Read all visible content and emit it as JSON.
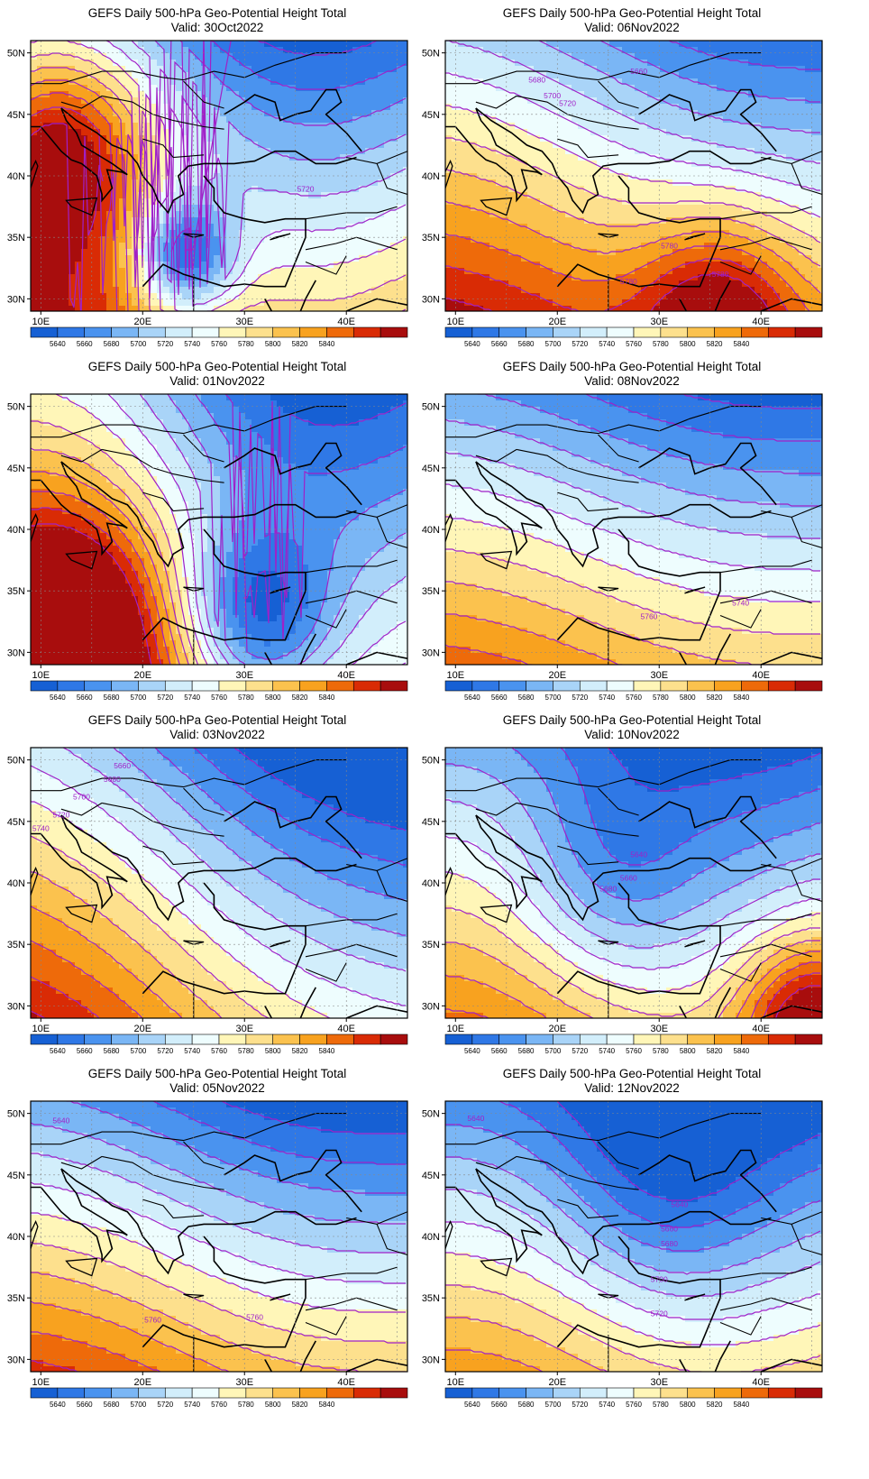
{
  "panel_title": "GEFS Daily 500-hPa Geo-Potential Height Total",
  "valid_prefix": "Valid: ",
  "lat_labels": [
    "50N",
    "45N",
    "40N",
    "35N",
    "30N"
  ],
  "lon_labels": [
    "10E",
    "20E",
    "30E",
    "40E"
  ],
  "colorbar": {
    "labels": [
      "5640",
      "5660",
      "5680",
      "5700",
      "5720",
      "5740",
      "5760",
      "5780",
      "5800",
      "5820",
      "5840"
    ],
    "colors": [
      "#1660d4",
      "#2f78e6",
      "#4a93ef",
      "#7ab6f5",
      "#a9d4f8",
      "#d2eefb",
      "#eefdfe",
      "#fff6b8",
      "#fde08d",
      "#fbc24e",
      "#f8a21f",
      "#ee6a0a",
      "#d92b05",
      "#a80d0d"
    ]
  },
  "contour_color": "#a020c8",
  "panels": [
    {
      "valid": "30Oct2022",
      "contour_labels": [
        "5720"
      ]
    },
    {
      "valid": "06Nov2022",
      "contour_labels": [
        "5680",
        "5700",
        "5720",
        "5780",
        "5780",
        "5660",
        "5780"
      ]
    },
    {
      "valid": "01Nov2022",
      "contour_labels": []
    },
    {
      "valid": "08Nov2022",
      "contour_labels": [
        "5740",
        "5760"
      ]
    },
    {
      "valid": "03Nov2022",
      "contour_labels": [
        "5660",
        "5680",
        "5700",
        "5720",
        "5740"
      ]
    },
    {
      "valid": "10Nov2022",
      "contour_labels": [
        "5640",
        "5660",
        "5680"
      ]
    },
    {
      "valid": "05Nov2022",
      "contour_labels": [
        "5640",
        "5760",
        "5760"
      ]
    },
    {
      "valid": "12Nov2022",
      "contour_labels": [
        "5640",
        "5640",
        "5660",
        "5680",
        "5700",
        "5720"
      ]
    }
  ]
}
